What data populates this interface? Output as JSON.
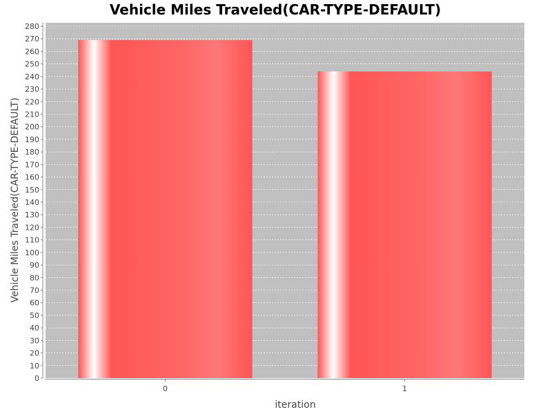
{
  "chart_data": {
    "type": "bar",
    "title": "Vehicle Miles Traveled(CAR-TYPE-DEFAULT)",
    "xlabel": "iteration",
    "ylabel": "Vehicle Miles Traveled(CAR-TYPE-DEFAULT)",
    "categories": [
      "0",
      "1"
    ],
    "values": [
      269,
      244
    ],
    "ylim": [
      0,
      280
    ],
    "ytick_step": 10,
    "grid": true,
    "legend": "none",
    "colors": {
      "bar": "#ff5555",
      "bar_highlight": "#ffffff",
      "plot_background": "#c0c0c0",
      "gridline": "#ffffff",
      "axis": "#888888"
    }
  }
}
